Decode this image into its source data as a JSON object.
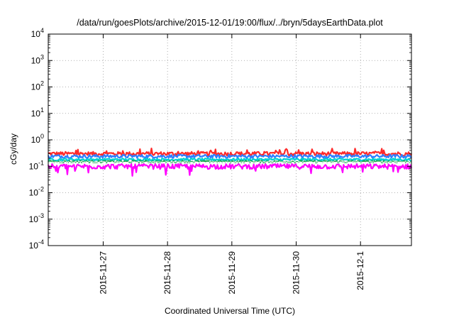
{
  "chart_data": {
    "type": "line",
    "title": "/data/run/goesPlots/archive/2015-12-01/19:00/flux/../bryn/5daysEarthData.plot",
    "xlabel": "Coordinated Universal Time (UTC)",
    "ylabel": "cGy/day",
    "y_scale": "log",
    "ylim": [
      0.0001,
      10000
    ],
    "y_ticks": [
      {
        "base": "10",
        "exp": "-4",
        "value": 0.0001
      },
      {
        "base": "10",
        "exp": "-3",
        "value": 0.001
      },
      {
        "base": "10",
        "exp": "-2",
        "value": 0.01
      },
      {
        "base": "10",
        "exp": "-1",
        "value": 0.1
      },
      {
        "base": "10",
        "exp": "0",
        "value": 1
      },
      {
        "base": "10",
        "exp": "1",
        "value": 10
      },
      {
        "base": "10",
        "exp": "2",
        "value": 100
      },
      {
        "base": "10",
        "exp": "3",
        "value": 1000
      },
      {
        "base": "10",
        "exp": "4",
        "value": 10000
      }
    ],
    "xlim": [
      "2015-11-26 03:30",
      "2015-12-01 19:00"
    ],
    "x_ticks": [
      {
        "label": "2015-11-27",
        "value": "2015-11-27 00:00"
      },
      {
        "label": "2015-11-28",
        "value": "2015-11-28 00:00"
      },
      {
        "label": "2015-11-29",
        "value": "2015-11-29 00:00"
      },
      {
        "label": "2015-11-30",
        "value": "2015-11-30 00:00"
      },
      {
        "label": "2015-12-1",
        "value": "2015-12-01 00:00"
      }
    ],
    "grid": true,
    "series": [
      {
        "color": "#ff2a2a",
        "level": 0.3,
        "noise": 0.18
      },
      {
        "color": "#2f7fff",
        "level": 0.24,
        "noise": 0.15
      },
      {
        "color": "#00d0d0",
        "level": 0.18,
        "noise": 0.1
      },
      {
        "color": "#19a64a",
        "level": 0.15,
        "noise": 0.08
      },
      {
        "color": "#ff00ff",
        "level": 0.1,
        "noise": 0.22
      },
      {
        "color": "#ffffff",
        "level": 0.145,
        "noise": 0.04
      }
    ]
  }
}
